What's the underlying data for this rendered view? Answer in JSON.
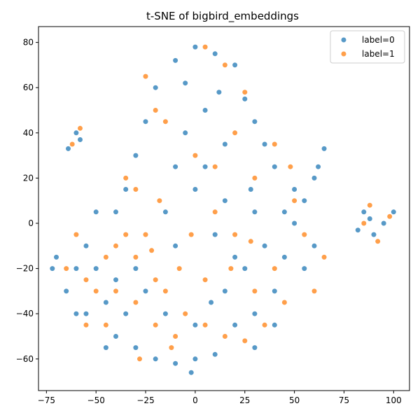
{
  "chart_data": {
    "type": "scatter",
    "title": "t-SNE of bigbird_embeddings",
    "xlabel": "",
    "ylabel": "",
    "xlim": [
      -79,
      108
    ],
    "ylim": [
      -74,
      87
    ],
    "xticks": [
      -75,
      -50,
      -25,
      0,
      25,
      50,
      75,
      100
    ],
    "yticks": [
      -60,
      -40,
      -20,
      0,
      20,
      40,
      60,
      80
    ],
    "grid": false,
    "legend_position": "top-right",
    "series": [
      {
        "name": "label=0",
        "color": "#1f77b4",
        "points": [
          [
            -60,
            40
          ],
          [
            -64,
            33
          ],
          [
            -58,
            37
          ],
          [
            -55,
            -10
          ],
          [
            -60,
            -20
          ],
          [
            -45,
            -35
          ],
          [
            -40,
            -50
          ],
          [
            -30,
            -55
          ],
          [
            -20,
            -60
          ],
          [
            -10,
            -62
          ],
          [
            0,
            -60
          ],
          [
            10,
            -58
          ],
          [
            20,
            -45
          ],
          [
            30,
            -40
          ],
          [
            40,
            -30
          ],
          [
            45,
            -15
          ],
          [
            50,
            0
          ],
          [
            55,
            10
          ],
          [
            60,
            20
          ],
          [
            62,
            25
          ],
          [
            40,
            25
          ],
          [
            35,
            35
          ],
          [
            30,
            45
          ],
          [
            25,
            55
          ],
          [
            20,
            70
          ],
          [
            10,
            75
          ],
          [
            0,
            78
          ],
          [
            -10,
            72
          ],
          [
            -20,
            60
          ],
          [
            -25,
            45
          ],
          [
            -30,
            30
          ],
          [
            -35,
            15
          ],
          [
            -40,
            5
          ],
          [
            -50,
            5
          ],
          [
            -65,
            -30
          ],
          [
            -70,
            -15
          ],
          [
            -55,
            -40
          ],
          [
            -35,
            -40
          ],
          [
            -15,
            -40
          ],
          [
            0,
            -45
          ],
          [
            15,
            -30
          ],
          [
            25,
            -20
          ],
          [
            35,
            -10
          ],
          [
            30,
            5
          ],
          [
            15,
            10
          ],
          [
            0,
            15
          ],
          [
            -10,
            25
          ],
          [
            -5,
            40
          ],
          [
            5,
            50
          ],
          [
            15,
            35
          ],
          [
            85,
            5
          ],
          [
            90,
            -5
          ],
          [
            95,
            0
          ],
          [
            100,
            5
          ],
          [
            82,
            -3
          ],
          [
            88,
            2
          ],
          [
            65,
            33
          ],
          [
            60,
            -10
          ],
          [
            55,
            -20
          ],
          [
            40,
            -45
          ],
          [
            30,
            -55
          ],
          [
            -2,
            -66
          ],
          [
            -45,
            -55
          ],
          [
            -60,
            -40
          ],
          [
            -72,
            -20
          ],
          [
            -50,
            -20
          ],
          [
            -30,
            -20
          ],
          [
            -10,
            -10
          ],
          [
            10,
            -5
          ],
          [
            20,
            -15
          ],
          [
            45,
            5
          ],
          [
            50,
            15
          ],
          [
            8,
            -35
          ],
          [
            -25,
            -30
          ],
          [
            -40,
            -25
          ],
          [
            -5,
            62
          ],
          [
            12,
            58
          ],
          [
            -15,
            5
          ],
          [
            5,
            25
          ],
          [
            28,
            15
          ]
        ]
      },
      {
        "name": "label=1",
        "color": "#ff7f0e",
        "points": [
          [
            -62,
            35
          ],
          [
            -58,
            42
          ],
          [
            -40,
            -10
          ],
          [
            -35,
            -5
          ],
          [
            -30,
            -15
          ],
          [
            -20,
            -25
          ],
          [
            -15,
            -30
          ],
          [
            -25,
            -5
          ],
          [
            -45,
            -15
          ],
          [
            -50,
            -30
          ],
          [
            -55,
            -45
          ],
          [
            -30,
            15
          ],
          [
            -35,
            20
          ],
          [
            -20,
            50
          ],
          [
            -25,
            65
          ],
          [
            -15,
            45
          ],
          [
            0,
            30
          ],
          [
            10,
            25
          ],
          [
            20,
            40
          ],
          [
            25,
            58
          ],
          [
            15,
            70
          ],
          [
            5,
            78
          ],
          [
            -8,
            -20
          ],
          [
            -5,
            -40
          ],
          [
            5,
            -45
          ],
          [
            15,
            -50
          ],
          [
            25,
            -52
          ],
          [
            30,
            -30
          ],
          [
            40,
            -20
          ],
          [
            45,
            -35
          ],
          [
            60,
            -30
          ],
          [
            65,
            -15
          ],
          [
            55,
            -5
          ],
          [
            50,
            10
          ],
          [
            48,
            25
          ],
          [
            40,
            35
          ],
          [
            30,
            20
          ],
          [
            20,
            -5
          ],
          [
            10,
            5
          ],
          [
            -2,
            -5
          ],
          [
            -10,
            -50
          ],
          [
            -20,
            -45
          ],
          [
            -30,
            -35
          ],
          [
            -45,
            -45
          ],
          [
            85,
            0
          ],
          [
            92,
            -8
          ],
          [
            98,
            3
          ],
          [
            88,
            8
          ],
          [
            -60,
            -5
          ],
          [
            -65,
            -20
          ],
          [
            -55,
            -25
          ],
          [
            -40,
            -30
          ],
          [
            -28,
            -60
          ],
          [
            -12,
            -55
          ],
          [
            28,
            -8
          ],
          [
            18,
            -20
          ],
          [
            5,
            -25
          ],
          [
            35,
            -45
          ],
          [
            -18,
            10
          ],
          [
            -22,
            -12
          ]
        ]
      }
    ]
  }
}
